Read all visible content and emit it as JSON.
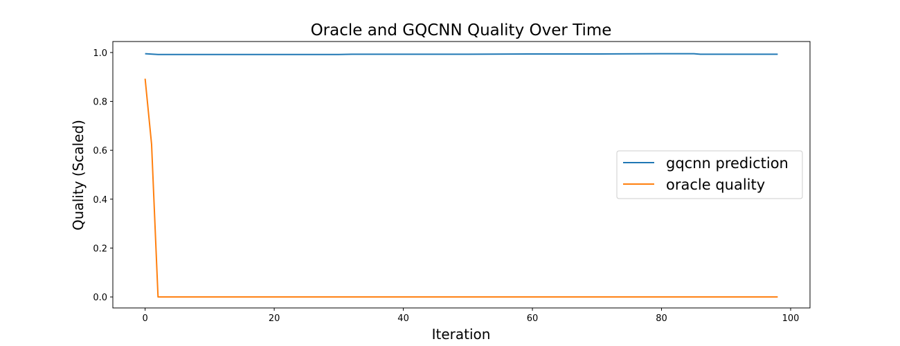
{
  "chart_data": {
    "type": "line",
    "title": "Oracle and GQCNN Quality Over Time",
    "xlabel": "Iteration",
    "ylabel": "Quality (Scaled)",
    "xlim": [
      -5,
      103
    ],
    "ylim": [
      -0.045,
      1.045
    ],
    "xticks": [
      0,
      20,
      40,
      60,
      80,
      100
    ],
    "yticks": [
      0.0,
      0.2,
      0.4,
      0.6,
      0.8,
      1.0
    ],
    "grid": false,
    "legend_position": "center-right",
    "series": [
      {
        "name": "gqcnn prediction",
        "color": "#1f77b4",
        "points": [
          [
            0,
            0.995
          ],
          [
            2,
            0.992
          ],
          [
            10,
            0.992
          ],
          [
            30,
            0.992
          ],
          [
            32,
            0.993
          ],
          [
            50,
            0.993
          ],
          [
            60,
            0.994
          ],
          [
            70,
            0.994
          ],
          [
            80,
            0.995
          ],
          [
            85,
            0.995
          ],
          [
            86,
            0.993
          ],
          [
            98,
            0.993
          ]
        ]
      },
      {
        "name": "oracle quality",
        "color": "#ff7f0e",
        "points": [
          [
            0,
            0.893
          ],
          [
            1,
            0.625
          ],
          [
            2,
            0.0
          ],
          [
            98,
            0.0
          ]
        ]
      }
    ]
  }
}
